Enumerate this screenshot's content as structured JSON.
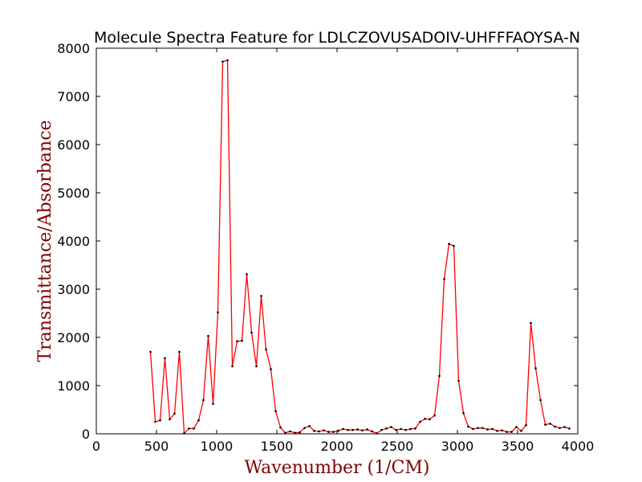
{
  "chart_data": {
    "type": "line",
    "title": "Molecule Spectra Feature for LDLCZOVUSADOIV-UHFFFAOYSA-N",
    "xlabel": "Wavenumber (1/CM)",
    "ylabel": "Transmittance/Absorbance",
    "xlim": [
      0,
      4000
    ],
    "ylim": [
      0,
      8000
    ],
    "x_ticks": [
      0,
      500,
      1000,
      1500,
      2000,
      2500,
      3000,
      3500,
      4000
    ],
    "y_ticks": [
      0,
      1000,
      2000,
      3000,
      4000,
      5000,
      6000,
      7000,
      8000
    ],
    "grid": false,
    "colors": {
      "line": "#ff0000",
      "marker": "#000000",
      "label": "#800000"
    },
    "series": [
      {
        "x": [
          450,
          490,
          530,
          570,
          610,
          650,
          690,
          730,
          770,
          810,
          850,
          890,
          930,
          970,
          1010,
          1050,
          1090,
          1130,
          1170,
          1210,
          1250,
          1290,
          1330,
          1370,
          1410,
          1450,
          1490,
          1530,
          1570,
          1610,
          1650,
          1690,
          1730,
          1770,
          1810,
          1850,
          1890,
          1930,
          1970,
          2010,
          2050,
          2090,
          2130,
          2170,
          2210,
          2250,
          2290,
          2330,
          2370,
          2410,
          2450,
          2490,
          2530,
          2570,
          2610,
          2650,
          2690,
          2730,
          2770,
          2810,
          2850,
          2890,
          2930,
          2970,
          3010,
          3050,
          3090,
          3130,
          3170,
          3210,
          3250,
          3290,
          3330,
          3370,
          3410,
          3450,
          3490,
          3530,
          3570,
          3610,
          3650,
          3690,
          3730,
          3770,
          3810,
          3850,
          3890,
          3930
        ],
        "y": [
          1700,
          250,
          280,
          1570,
          300,
          420,
          1700,
          10,
          110,
          110,
          280,
          700,
          2030,
          620,
          2520,
          7720,
          7750,
          1400,
          1920,
          1930,
          3310,
          2100,
          1400,
          2860,
          1750,
          1340,
          470,
          130,
          20,
          50,
          20,
          30,
          120,
          160,
          60,
          50,
          70,
          40,
          40,
          60,
          100,
          80,
          80,
          90,
          70,
          90,
          50,
          10,
          80,
          110,
          140,
          80,
          100,
          80,
          100,
          110,
          250,
          310,
          300,
          380,
          1200,
          3210,
          3940,
          3900,
          1100,
          430,
          150,
          100,
          120,
          120,
          90,
          100,
          60,
          70,
          40,
          40,
          140,
          60,
          180,
          2300,
          1360,
          700,
          190,
          210,
          150,
          120,
          140,
          110
        ]
      }
    ]
  }
}
